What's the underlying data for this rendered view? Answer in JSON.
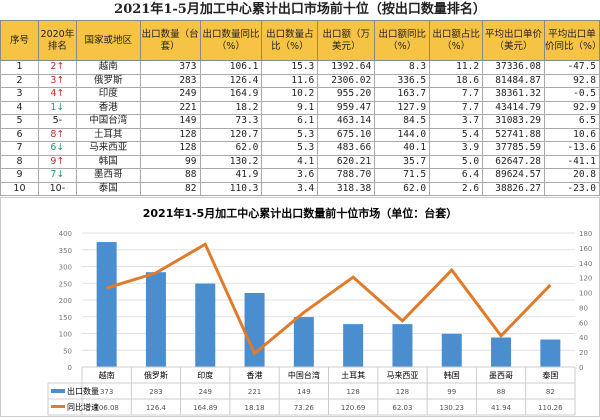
{
  "table": {
    "title": "2021年1-5月加工中心累计出口市场前十位（按出口数量排名）",
    "headers": [
      "序号",
      "2020年排名",
      "国家或地区",
      "出口数量（台套）",
      "出口数量同比（%）",
      "出口数量占比（%）",
      "出口额（万美元）",
      "出口额同比（%）",
      "出口额占比（%）",
      "平均出口单价（美元）",
      "平均出口单价同比（%）"
    ],
    "rows": [
      [
        "1",
        "2",
        "up",
        "越南",
        "373",
        "106.1",
        "15.3",
        "1392.64",
        "8.3",
        "11.2",
        "37336.08",
        "-47.5"
      ],
      [
        "2",
        "3",
        "up",
        "俄罗斯",
        "283",
        "126.4",
        "11.6",
        "2306.02",
        "336.5",
        "18.6",
        "81484.87",
        "92.8"
      ],
      [
        "3",
        "4",
        "up",
        "印度",
        "249",
        "164.9",
        "10.2",
        "955.20",
        "163.7",
        "7.7",
        "38361.32",
        "-0.5"
      ],
      [
        "4",
        "1",
        "down",
        "香港",
        "221",
        "18.2",
        "9.1",
        "959.47",
        "127.9",
        "7.7",
        "43414.79",
        "92.9"
      ],
      [
        "5",
        "5",
        "same",
        "中国台湾",
        "149",
        "73.3",
        "6.1",
        "463.14",
        "84.5",
        "3.7",
        "31083.29",
        "6.5"
      ],
      [
        "6",
        "8",
        "up",
        "土耳其",
        "128",
        "120.7",
        "5.3",
        "675.10",
        "144.0",
        "5.4",
        "52741.88",
        "10.6"
      ],
      [
        "7",
        "6",
        "down",
        "马来西亚",
        "128",
        "62.0",
        "5.3",
        "483.66",
        "40.1",
        "3.9",
        "37785.59",
        "-13.6"
      ],
      [
        "8",
        "9",
        "up",
        "韩国",
        "99",
        "130.2",
        "4.1",
        "620.21",
        "35.7",
        "5.0",
        "62647.28",
        "-41.1"
      ],
      [
        "9",
        "7",
        "down",
        "墨西哥",
        "88",
        "41.9",
        "3.6",
        "788.70",
        "71.5",
        "6.4",
        "89624.57",
        "20.8"
      ],
      [
        "10",
        "10",
        "same",
        "泰国",
        "82",
        "110.3",
        "3.4",
        "318.38",
        "62.0",
        "2.6",
        "38826.27",
        "-23.0"
      ]
    ]
  },
  "rank_symbols": {
    "up": "↑",
    "down": "↓",
    "same": "-"
  },
  "chart_data": {
    "type": "bar+line",
    "title": "2021年1-5月加工中心累计出口数量前十位市场（单位：台套）",
    "categories": [
      "越南",
      "俄罗斯",
      "印度",
      "香港",
      "中国台湾",
      "土耳其",
      "马来西亚",
      "韩国",
      "墨西哥",
      "泰国"
    ],
    "series": [
      {
        "name": "出口数量",
        "type": "bar",
        "axis": "left",
        "color": "#4a8ed0",
        "values": [
          373,
          283,
          249,
          221,
          149,
          128,
          128,
          99,
          88,
          82
        ],
        "labels": [
          "373",
          "283",
          "249",
          "221",
          "149",
          "128",
          "128",
          "99",
          "88",
          "82"
        ]
      },
      {
        "name": "同比增速",
        "type": "line",
        "axis": "right",
        "color": "#e07b2a",
        "values": [
          106.08,
          126.4,
          164.89,
          18.18,
          73.26,
          120.69,
          62.03,
          130.23,
          41.94,
          110.26
        ],
        "labels": [
          "106.08",
          "126.4",
          "164.89",
          "18.18",
          "73.26",
          "120.69",
          "62.03",
          "130.23",
          "41.94",
          "110.26"
        ]
      }
    ],
    "ylim_left": [
      0,
      400
    ],
    "yticks_left": [
      "0",
      "50",
      "100",
      "150",
      "200",
      "250",
      "300",
      "350",
      "400"
    ],
    "ylim_right": [
      0,
      180
    ],
    "yticks_right": [
      "0",
      "20",
      "40",
      "60",
      "80",
      "100",
      "120",
      "140",
      "160",
      "180"
    ],
    "grid": true,
    "legend": "data-table-bottom"
  }
}
